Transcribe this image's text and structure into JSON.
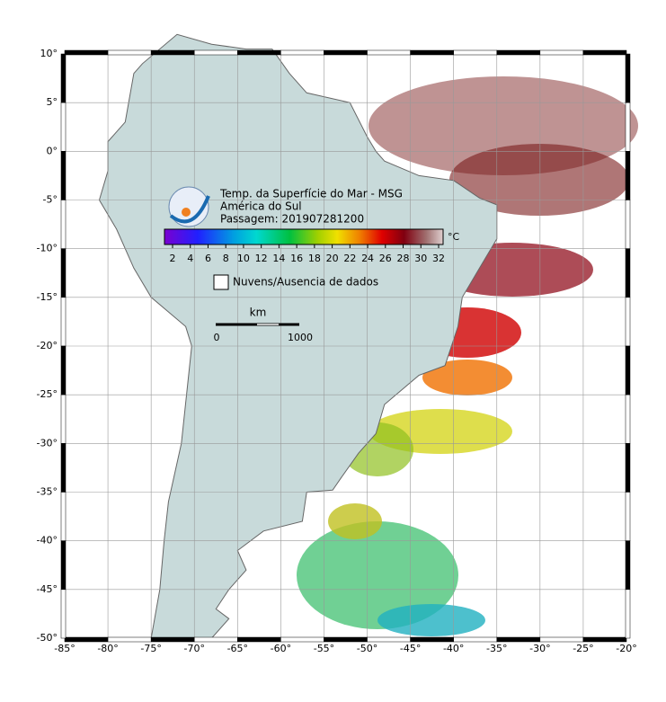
{
  "header": {
    "title": "Temp. da Superfície do Mar - MSG",
    "region": "América do Sul",
    "pass": "Passagem: 201907281200"
  },
  "colorbar": {
    "ticks": [
      2,
      4,
      6,
      8,
      10,
      12,
      14,
      16,
      18,
      20,
      22,
      24,
      26,
      28,
      30,
      32
    ],
    "unit": "°C"
  },
  "legend": {
    "clouds": "Nuvens/Ausencia de dados"
  },
  "scale": {
    "unit": "km",
    "labels": [
      0,
      1000
    ]
  },
  "axes": {
    "lon_labels": [
      "-85°",
      "-80°",
      "-75°",
      "-70°",
      "-65°",
      "-60°",
      "-55°",
      "-50°",
      "-45°",
      "-40°",
      "-35°",
      "-30°",
      "-25°",
      "-20°"
    ],
    "lat_labels": [
      "10°",
      "5°",
      "0°",
      "-5°",
      "-10°",
      "-15°",
      "-20°",
      "-25°",
      "-30°",
      "-35°",
      "-40°",
      "-45°",
      "-50°"
    ]
  }
}
